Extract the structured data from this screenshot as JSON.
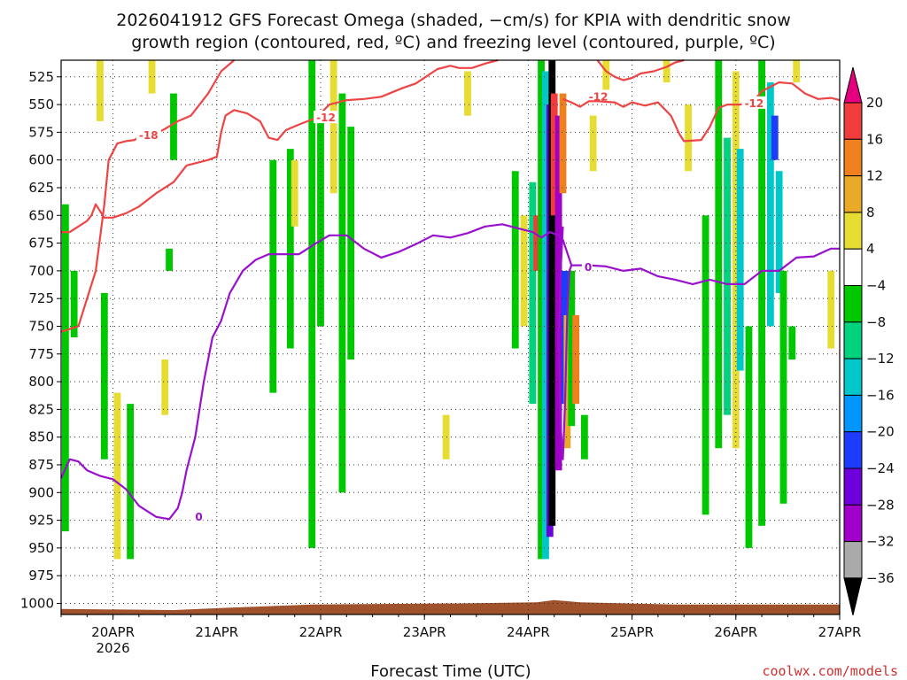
{
  "title_line1": "2026041912 GFS Forecast Omega (shaded, −cm/s) for KPIA with dendritic snow",
  "title_line2": "growth region (contoured, red, ºC) and freezing level (contoured, purple, ºC)",
  "credit": "coolwx.com/models",
  "chart_data": {
    "type": "heatmap",
    "title": "2026041912 GFS Forecast Omega (shaded, −cm/s) for KPIA with dendritic snow growth region (contoured, red, ºC) and freezing level (contoured, purple, ºC)",
    "xlabel": "Forecast Time (UTC)",
    "ylabel": "Pressure (hPa)",
    "x_range_hours": [
      -12,
      168
    ],
    "x_ticks": [
      {
        "hour": 0,
        "label": "20APR",
        "sub": "2026"
      },
      {
        "hour": 24,
        "label": "21APR"
      },
      {
        "hour": 48,
        "label": "22APR"
      },
      {
        "hour": 72,
        "label": "23APR"
      },
      {
        "hour": 96,
        "label": "24APR"
      },
      {
        "hour": 120,
        "label": "25APR"
      },
      {
        "hour": 144,
        "label": "26APR"
      },
      {
        "hour": 168,
        "label": "27APR"
      }
    ],
    "y_range_hpa": [
      510,
      1010
    ],
    "y_ticks": [
      525,
      550,
      575,
      600,
      625,
      650,
      675,
      700,
      725,
      750,
      775,
      800,
      825,
      850,
      875,
      900,
      925,
      950,
      975,
      1000
    ],
    "colorbar": {
      "labels": [
        "20",
        "16",
        "12",
        "8",
        "4",
        "−4",
        "−8",
        "−12",
        "−16",
        "−20",
        "−24",
        "−28",
        "−32",
        "−36"
      ],
      "colors": [
        "#e6007f",
        "#f03c3c",
        "#f0801e",
        "#e8aa28",
        "#e6dc32",
        "#ffffff",
        "#00c800",
        "#00d27d",
        "#00c8c8",
        "#0096ff",
        "#1e3cff",
        "#6e00dc",
        "#a000c8",
        "#aaaaaa",
        "#000000"
      ]
    },
    "shaded_regions": [
      {
        "hour": -3,
        "p_top": 510,
        "p_bot": 565,
        "value": 6
      },
      {
        "hour": -11,
        "p_top": 640,
        "p_bot": 935,
        "value": -6
      },
      {
        "hour": -9,
        "p_top": 700,
        "p_bot": 760,
        "value": -6
      },
      {
        "hour": -2,
        "p_top": 720,
        "p_bot": 870,
        "value": -6
      },
      {
        "hour": 1,
        "p_top": 810,
        "p_bot": 960,
        "value": 6
      },
      {
        "hour": 4,
        "p_top": 820,
        "p_bot": 960,
        "value": -6
      },
      {
        "hour": 9,
        "p_top": 510,
        "p_bot": 540,
        "value": 6
      },
      {
        "hour": 12,
        "p_top": 780,
        "p_bot": 830,
        "value": 6
      },
      {
        "hour": 13,
        "p_top": 680,
        "p_bot": 700,
        "value": -6
      },
      {
        "hour": 14,
        "p_top": 540,
        "p_bot": 600,
        "value": -6
      },
      {
        "hour": 37,
        "p_top": 600,
        "p_bot": 810,
        "value": -6
      },
      {
        "hour": 41,
        "p_top": 590,
        "p_bot": 770,
        "value": -6
      },
      {
        "hour": 42,
        "p_top": 600,
        "p_bot": 660,
        "value": 6
      },
      {
        "hour": 46,
        "p_top": 510,
        "p_bot": 950,
        "value": -6
      },
      {
        "hour": 48,
        "p_top": 560,
        "p_bot": 750,
        "value": -6
      },
      {
        "hour": 51,
        "p_top": 510,
        "p_bot": 630,
        "value": 6
      },
      {
        "hour": 53,
        "p_top": 540,
        "p_bot": 900,
        "value": -6
      },
      {
        "hour": 55,
        "p_top": 570,
        "p_bot": 780,
        "value": -6
      },
      {
        "hour": 77,
        "p_top": 830,
        "p_bot": 870,
        "value": 6
      },
      {
        "hour": 82,
        "p_top": 520,
        "p_bot": 560,
        "value": 6
      },
      {
        "hour": 93,
        "p_top": 610,
        "p_bot": 770,
        "value": -6
      },
      {
        "hour": 95,
        "p_top": 650,
        "p_bot": 750,
        "value": 6
      },
      {
        "hour": 97,
        "p_top": 620,
        "p_bot": 820,
        "value": -8
      },
      {
        "hour": 98,
        "p_top": 650,
        "p_bot": 700,
        "value": 16
      },
      {
        "hour": 99,
        "p_top": 510,
        "p_bot": 960,
        "value": -6
      },
      {
        "hour": 100,
        "p_top": 520,
        "p_bot": 960,
        "value": -12
      },
      {
        "hour": 101,
        "p_top": 550,
        "p_bot": 940,
        "value": -24
      },
      {
        "hour": 101.5,
        "p_top": 510,
        "p_bot": 930,
        "value": -36
      },
      {
        "hour": 102,
        "p_top": 540,
        "p_bot": 650,
        "value": 16
      },
      {
        "hour": 103,
        "p_top": 560,
        "p_bot": 880,
        "value": -28
      },
      {
        "hour": 104,
        "p_top": 540,
        "p_bot": 630,
        "value": 12
      },
      {
        "hour": 104.5,
        "p_top": 700,
        "p_bot": 820,
        "value": -20
      },
      {
        "hour": 105,
        "p_top": 740,
        "p_bot": 860,
        "value": 8
      },
      {
        "hour": 106,
        "p_top": 700,
        "p_bot": 840,
        "value": -6
      },
      {
        "hour": 107,
        "p_top": 740,
        "p_bot": 820,
        "value": 12
      },
      {
        "hour": 109,
        "p_top": 830,
        "p_bot": 870,
        "value": -6
      },
      {
        "hour": 111,
        "p_top": 560,
        "p_bot": 610,
        "value": 6
      },
      {
        "hour": 114,
        "p_top": 510,
        "p_bot": 540,
        "value": 6
      },
      {
        "hour": 128,
        "p_top": 510,
        "p_bot": 530,
        "value": 6
      },
      {
        "hour": 133,
        "p_top": 550,
        "p_bot": 610,
        "value": 6
      },
      {
        "hour": 137,
        "p_top": 650,
        "p_bot": 920,
        "value": -6
      },
      {
        "hour": 140,
        "p_top": 510,
        "p_bot": 860,
        "value": -6
      },
      {
        "hour": 142,
        "p_top": 580,
        "p_bot": 830,
        "value": -8
      },
      {
        "hour": 144,
        "p_top": 520,
        "p_bot": 860,
        "value": 6
      },
      {
        "hour": 145,
        "p_top": 590,
        "p_bot": 790,
        "value": -12
      },
      {
        "hour": 147,
        "p_top": 750,
        "p_bot": 950,
        "value": -6
      },
      {
        "hour": 150,
        "p_top": 510,
        "p_bot": 930,
        "value": -6
      },
      {
        "hour": 152,
        "p_top": 530,
        "p_bot": 750,
        "value": -12
      },
      {
        "hour": 153,
        "p_top": 560,
        "p_bot": 600,
        "value": -20
      },
      {
        "hour": 154,
        "p_top": 610,
        "p_bot": 720,
        "value": -12
      },
      {
        "hour": 155,
        "p_top": 700,
        "p_bot": 910,
        "value": -6
      },
      {
        "hour": 157,
        "p_top": 750,
        "p_bot": 780,
        "value": -6
      },
      {
        "hour": 158,
        "p_top": 510,
        "p_bot": 530,
        "value": 6
      },
      {
        "hour": 166,
        "p_top": 700,
        "p_bot": 770,
        "value": 6
      }
    ],
    "contours": [
      {
        "name": "-18C dendritic bottom",
        "color": "#ee4444",
        "label": "-18",
        "label_at": [
          6,
          578
        ],
        "points": [
          [
            -12,
            755
          ],
          [
            -8,
            750
          ],
          [
            -4,
            700
          ],
          [
            -3,
            670
          ],
          [
            -2,
            640
          ],
          [
            -1,
            600
          ],
          [
            1,
            585
          ],
          [
            3,
            583
          ],
          [
            5,
            582
          ],
          [
            6,
            579
          ],
          [
            9,
            578
          ],
          [
            12,
            572
          ],
          [
            15,
            565
          ],
          [
            18,
            560
          ],
          [
            20,
            550
          ],
          [
            22,
            540
          ],
          [
            25,
            520
          ],
          [
            28,
            510
          ]
        ]
      },
      {
        "name": "-12C dendritic top",
        "color": "#ee4444",
        "label": "-12",
        "label_at": [
          47,
          562
        ],
        "points": [
          [
            -12,
            665
          ],
          [
            -10,
            665
          ],
          [
            -8,
            660
          ],
          [
            -6,
            655
          ],
          [
            -5,
            650
          ],
          [
            -4,
            640
          ],
          [
            -2,
            652
          ],
          [
            0,
            652
          ],
          [
            3,
            648
          ],
          [
            6,
            642
          ],
          [
            10,
            630
          ],
          [
            14,
            620
          ],
          [
            17,
            605
          ],
          [
            22,
            600
          ],
          [
            24,
            597
          ],
          [
            25,
            575
          ],
          [
            26,
            560
          ],
          [
            28,
            555
          ],
          [
            31,
            558
          ],
          [
            34,
            565
          ],
          [
            36,
            580
          ],
          [
            38,
            582
          ],
          [
            40,
            573
          ],
          [
            43,
            568
          ],
          [
            47,
            562
          ],
          [
            50,
            550
          ],
          [
            54,
            546
          ],
          [
            58,
            545
          ],
          [
            62,
            543
          ],
          [
            67,
            535
          ],
          [
            70,
            531
          ],
          [
            75,
            518
          ],
          [
            78,
            515
          ],
          [
            80,
            517
          ],
          [
            83,
            517
          ],
          [
            86,
            513
          ],
          [
            89,
            510
          ]
        ]
      },
      {
        "name": "-12C upper right",
        "color": "#ee4444",
        "label": "-12",
        "label_at": [
          110,
          543
        ],
        "points": [
          [
            112,
            510
          ],
          [
            113,
            515
          ],
          [
            114,
            520
          ],
          [
            116,
            525
          ],
          [
            118,
            528
          ],
          [
            120,
            526
          ],
          [
            122,
            522
          ],
          [
            125,
            520
          ],
          [
            128,
            516
          ],
          [
            130,
            512
          ],
          [
            132,
            510
          ]
        ]
      },
      {
        "name": "-12C right",
        "color": "#ee4444",
        "label": "-12",
        "label_at": [
          146,
          549
        ],
        "points": [
          [
            104,
            545
          ],
          [
            106,
            548
          ],
          [
            108,
            552
          ],
          [
            110,
            547
          ],
          [
            112,
            547
          ],
          [
            116,
            548
          ],
          [
            118,
            552
          ],
          [
            120,
            548
          ],
          [
            123,
            551
          ],
          [
            126,
            548
          ],
          [
            129,
            560
          ],
          [
            131,
            577
          ],
          [
            132,
            583
          ],
          [
            136,
            582
          ],
          [
            138,
            570
          ],
          [
            140,
            553
          ],
          [
            142,
            550
          ],
          [
            145,
            550
          ],
          [
            148,
            547
          ],
          [
            150,
            538
          ],
          [
            152,
            534
          ],
          [
            154,
            530
          ],
          [
            157,
            531
          ],
          [
            160,
            540
          ],
          [
            163,
            545
          ],
          [
            166,
            544
          ],
          [
            168,
            546
          ]
        ]
      },
      {
        "name": "0C freezing level",
        "color": "#9911cc",
        "label": "0",
        "label_at": [
          19,
          922
        ],
        "points": [
          [
            -12,
            887
          ],
          [
            -10,
            870
          ],
          [
            -8,
            872
          ],
          [
            -6,
            880
          ],
          [
            -3,
            885
          ],
          [
            0,
            888
          ],
          [
            3,
            897
          ],
          [
            6,
            912
          ],
          [
            10,
            922
          ],
          [
            13,
            924
          ],
          [
            15,
            914
          ],
          [
            16,
            900
          ],
          [
            17,
            880
          ],
          [
            19,
            850
          ],
          [
            21,
            800
          ],
          [
            23,
            760
          ],
          [
            25,
            745
          ],
          [
            27,
            720
          ],
          [
            30,
            700
          ],
          [
            33,
            690
          ],
          [
            36,
            685
          ],
          [
            39,
            685
          ],
          [
            43,
            685
          ],
          [
            47,
            675
          ],
          [
            50,
            668
          ],
          [
            54,
            668
          ],
          [
            58,
            680
          ],
          [
            62,
            688
          ],
          [
            66,
            683
          ],
          [
            70,
            676
          ],
          [
            74,
            668
          ],
          [
            78,
            670
          ],
          [
            82,
            666
          ],
          [
            86,
            660
          ],
          [
            90,
            658
          ],
          [
            94,
            662
          ],
          [
            97,
            665
          ],
          [
            99,
            670
          ],
          [
            101,
            665
          ],
          [
            103,
            668
          ],
          [
            104,
            672
          ],
          [
            106,
            695
          ],
          [
            110,
            695
          ],
          [
            114,
            696
          ],
          [
            118,
            700
          ],
          [
            122,
            698
          ],
          [
            126,
            705
          ],
          [
            130,
            708
          ],
          [
            134,
            712
          ],
          [
            138,
            708
          ],
          [
            142,
            712
          ],
          [
            146,
            712
          ],
          [
            150,
            700
          ],
          [
            154,
            700
          ],
          [
            158,
            688
          ],
          [
            162,
            687
          ],
          [
            166,
            680
          ],
          [
            168,
            680
          ]
        ]
      },
      {
        "name": "0C dip near 24APR",
        "color": "#9911cc",
        "label": "0",
        "label_at": [
          109,
          697
        ],
        "points": [
          [
            104,
            660
          ],
          [
            103.5,
            700
          ],
          [
            103,
            760
          ],
          [
            103.5,
            840
          ],
          [
            104,
            870
          ],
          [
            104.5,
            820
          ],
          [
            105,
            740
          ],
          [
            105.5,
            700
          ],
          [
            106,
            695
          ]
        ]
      }
    ],
    "terrain_color": "#a0522d"
  },
  "colors": {
    "contour_dendritic": "#ee4444",
    "contour_freezing": "#9911cc",
    "terrain": "#a0522d",
    "grid": "#444444"
  }
}
